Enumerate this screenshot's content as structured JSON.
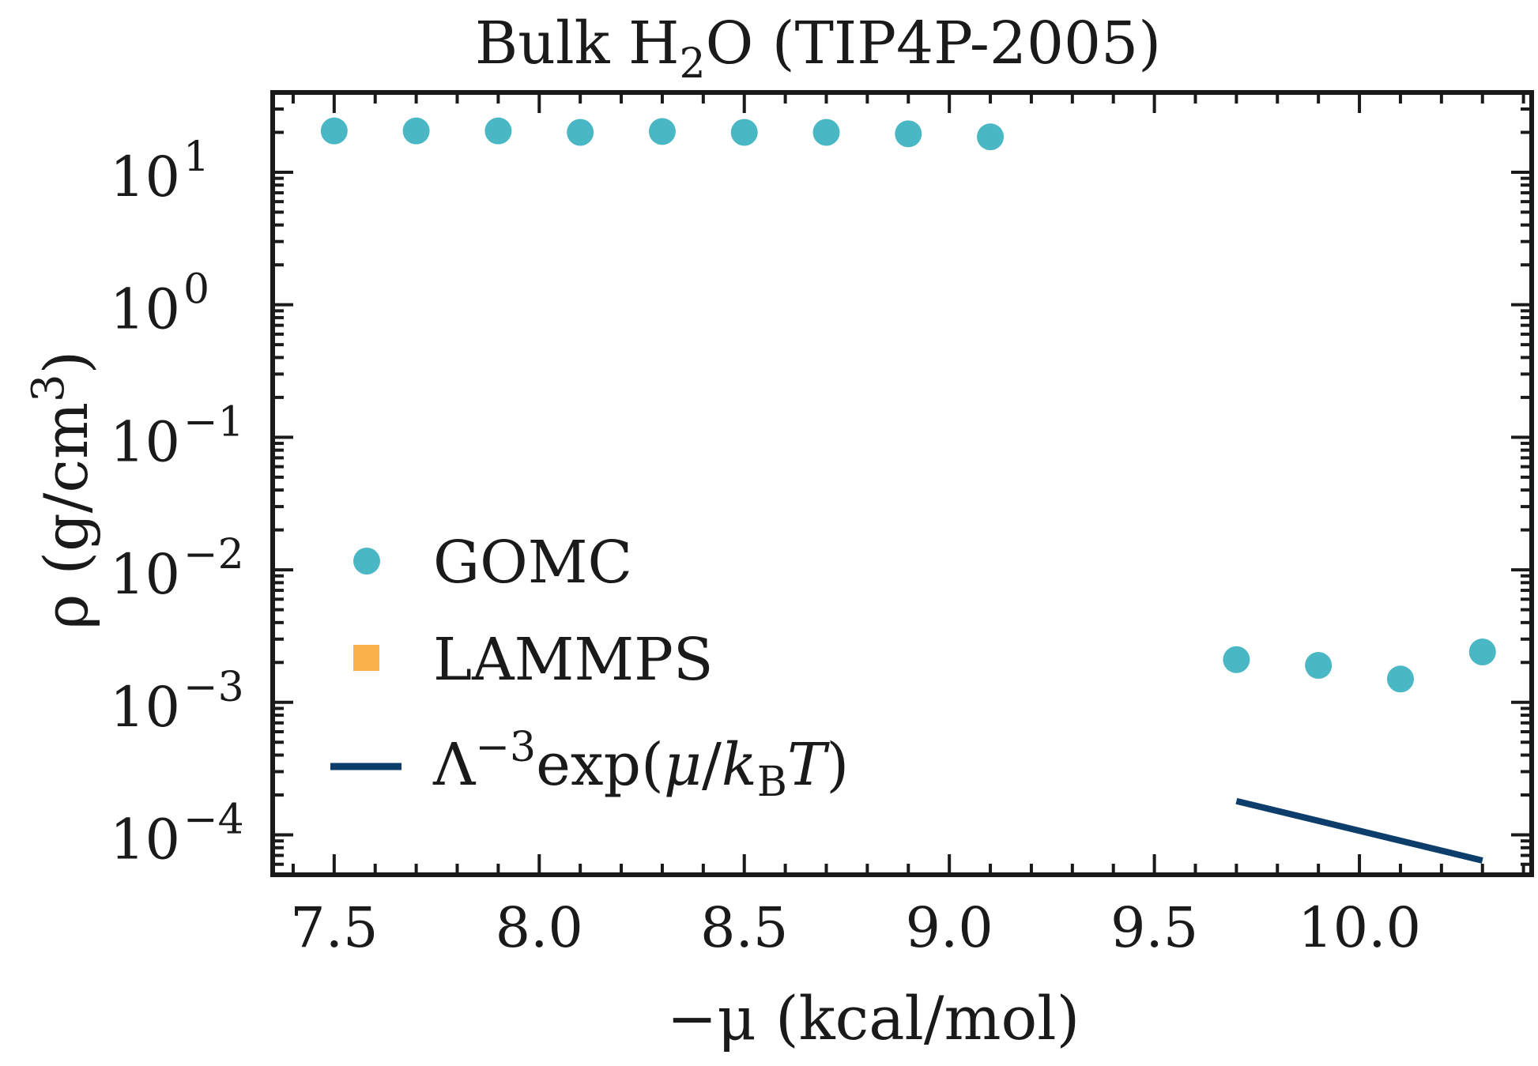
{
  "chart_data": {
    "type": "scatter",
    "title": "Bulk H₂O (TIP4P-2005)",
    "title_parts": {
      "pre": "Bulk H",
      "sub": "2",
      "post": "O (TIP4P-2005)"
    },
    "xlabel": "−μ (kcal/mol)",
    "ylabel": "ρ (g/cm³)",
    "ylabel_parts": {
      "pre": "ρ (g/cm",
      "sup": "3",
      "post": ")"
    },
    "xlim": [
      7.35,
      10.42
    ],
    "ylim": [
      5e-05,
      40
    ],
    "yscale": "log",
    "grid": false,
    "legend_position": "center-left",
    "x_ticks": [
      {
        "value": 7.5,
        "label": "7.5"
      },
      {
        "value": 8.0,
        "label": "8.0"
      },
      {
        "value": 8.5,
        "label": "8.5"
      },
      {
        "value": 9.0,
        "label": "9.0"
      },
      {
        "value": 9.5,
        "label": "9.5"
      },
      {
        "value": 10.0,
        "label": "10.0"
      }
    ],
    "y_ticks": [
      {
        "value": 10,
        "base": "10",
        "exp": "1"
      },
      {
        "value": 1,
        "base": "10",
        "exp": "0"
      },
      {
        "value": 0.1,
        "base": "10",
        "exp": "−1"
      },
      {
        "value": 0.01,
        "base": "10",
        "exp": "−2"
      },
      {
        "value": 0.001,
        "base": "10",
        "exp": "−3"
      },
      {
        "value": 0.0001,
        "base": "10",
        "exp": "−4"
      }
    ],
    "series": [
      {
        "name": "GOMC",
        "marker": "circle",
        "color": "#4ab8c4",
        "x": [
          7.5,
          7.7,
          7.9,
          8.1,
          8.3,
          8.5,
          8.7,
          8.9,
          9.1,
          9.7,
          9.9,
          10.1,
          10.3
        ],
        "y": [
          20.5,
          20.5,
          20.5,
          20.0,
          20.3,
          20.0,
          20.0,
          19.5,
          18.5,
          0.0021,
          0.0019,
          0.0015,
          0.0024
        ]
      },
      {
        "name": "LAMMPS",
        "marker": "square",
        "color": "#fbb04c",
        "x": [],
        "y": []
      },
      {
        "name": "Λ⁻³exp(μ/k_BT)",
        "marker": "line",
        "color": "#0d3d6b",
        "x": [
          9.7,
          10.3
        ],
        "y": [
          0.00018,
          6.4e-05
        ]
      }
    ],
    "legend_entries": [
      {
        "label": "GOMC"
      },
      {
        "label": "LAMMPS"
      },
      {
        "label_parts": {
          "lam": "Λ",
          "sup": "−3",
          "mid": "exp(",
          "mu": "μ",
          "slash": "/",
          "k": "k",
          "sub": "B",
          "T": "T",
          "close": ")"
        }
      }
    ]
  }
}
